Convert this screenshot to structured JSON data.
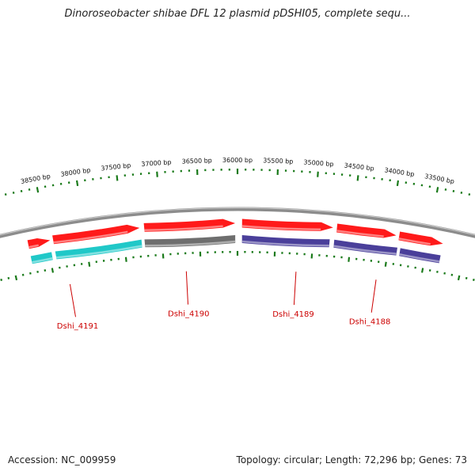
{
  "title": "Dinoroseobacter shibae DFL 12 plasmid pDSHI05, complete sequ...",
  "footer": {
    "accession": "Accession: NC_009959",
    "summary": "Topology: circular; Length: 72,296 bp; Genes: 73"
  },
  "ruler": {
    "labels": [
      "38500 bp",
      "38000 bp",
      "37500 bp",
      "37000 bp",
      "36500 bp",
      "36000 bp",
      "35500 bp",
      "35000 bp",
      "34500 bp",
      "34000 bp",
      "33500 bp"
    ],
    "label_positions_bp": [
      38500,
      38000,
      37500,
      37000,
      36500,
      36000,
      35500,
      35000,
      34500,
      34000,
      33500
    ]
  },
  "gene_labels": [
    {
      "name": "Dshi_4191",
      "position_bp": 38300
    },
    {
      "name": "Dshi_4190",
      "position_bp": 36700
    },
    {
      "name": "Dshi_4189",
      "position_bp": 35200
    },
    {
      "name": "Dshi_4188",
      "position_bp": 34100
    }
  ],
  "colors": {
    "ruler": "#1a7a1a",
    "backbone": "#8c8c8c",
    "forward_cds": "#ff1a1a",
    "teal_cds": "#20c8c8",
    "gray_cds": "#6e6e6e",
    "purple_cds": "#4a3f9a",
    "label": "#cc0000"
  },
  "features": [
    {
      "track": "outer",
      "color_key": "forward_cds",
      "start_bp": 38750,
      "end_bp": 38460,
      "direction": "minus"
    },
    {
      "track": "outer",
      "color_key": "forward_cds",
      "start_bp": 38420,
      "end_bp": 37280,
      "direction": "minus"
    },
    {
      "track": "outer",
      "color_key": "forward_cds",
      "start_bp": 37220,
      "end_bp": 36030,
      "direction": "minus"
    },
    {
      "track": "outer",
      "color_key": "forward_cds",
      "start_bp": 35940,
      "end_bp": 34750,
      "direction": "minus"
    },
    {
      "track": "outer",
      "color_key": "forward_cds",
      "start_bp": 34700,
      "end_bp": 33920,
      "direction": "minus"
    },
    {
      "track": "outer",
      "color_key": "forward_cds",
      "start_bp": 33880,
      "end_bp": 33300,
      "direction": "minus"
    },
    {
      "track": "inner",
      "color_key": "teal_cds",
      "start_bp": 38750,
      "end_bp": 38470,
      "direction": "none"
    },
    {
      "track": "inner",
      "color_key": "teal_cds",
      "start_bp": 38420,
      "end_bp": 37270,
      "direction": "none"
    },
    {
      "track": "inner",
      "color_key": "gray_cds",
      "start_bp": 37230,
      "end_bp": 36030,
      "direction": "none"
    },
    {
      "track": "inner",
      "color_key": "purple_cds",
      "start_bp": 35940,
      "end_bp": 34780,
      "direction": "none"
    },
    {
      "track": "inner",
      "color_key": "purple_cds",
      "start_bp": 34720,
      "end_bp": 33880,
      "direction": "none"
    },
    {
      "track": "inner",
      "color_key": "purple_cds",
      "start_bp": 33840,
      "end_bp": 33300,
      "direction": "none"
    }
  ]
}
